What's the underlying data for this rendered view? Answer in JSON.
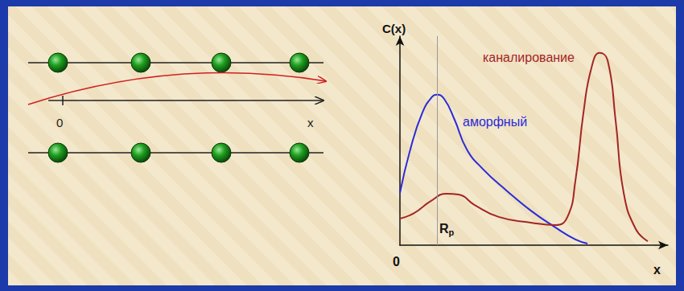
{
  "diagram": {
    "origin_label": "0",
    "axis_label": "x"
  },
  "chart_data": {
    "type": "line",
    "x_label": "x",
    "y_label": "C(x)",
    "xlim": [
      0,
      10
    ],
    "ylim": [
      0,
      10
    ],
    "xticks": [
      0
    ],
    "yticks": [],
    "tick_labels": "x",
    "grid": false,
    "series": [
      {
        "name": "аморфный",
        "color": "#2b2bd9",
        "x": [
          0,
          0.39,
          0.84,
          1.2,
          1.38,
          1.65,
          2.04,
          2.49,
          3.09,
          3.99,
          4.89,
          5.8,
          6.55,
          7.0
        ],
        "values": [
          2.5,
          4.6,
          6.35,
          7.1,
          7.2,
          7.0,
          6.0,
          4.6,
          3.65,
          2.6,
          1.65,
          0.85,
          0.27,
          0.08
        ]
      },
      {
        "name": "каналирование",
        "color": "#a32626",
        "x": [
          0,
          0.54,
          1.14,
          1.74,
          2.19,
          2.79,
          3.69,
          4.89,
          5.8,
          6.25,
          6.55,
          6.85,
          7.15,
          7.45,
          7.75,
          8.05,
          8.35,
          8.8,
          9.25
        ],
        "values": [
          1.27,
          1.54,
          2.1,
          2.46,
          2.42,
          1.92,
          1.35,
          1.08,
          0.96,
          1.35,
          3.1,
          6.35,
          8.5,
          9.2,
          8.85,
          5.95,
          2.5,
          0.77,
          0.19
        ]
      }
    ],
    "annotations": [
      {
        "text": "Rp",
        "x": 1.38
      }
    ]
  }
}
